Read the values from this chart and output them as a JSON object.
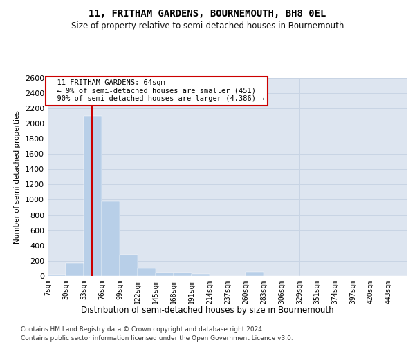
{
  "title": "11, FRITHAM GARDENS, BOURNEMOUTH, BH8 0EL",
  "subtitle": "Size of property relative to semi-detached houses in Bournemouth",
  "xlabel": "Distribution of semi-detached houses by size in Bournemouth",
  "ylabel": "Number of semi-detached properties",
  "footnote1": "Contains HM Land Registry data © Crown copyright and database right 2024.",
  "footnote2": "Contains public sector information licensed under the Open Government Licence v3.0.",
  "annotation_title": "11 FRITHAM GARDENS: 64sqm",
  "annotation_line1": "← 9% of semi-detached houses are smaller (451)",
  "annotation_line2": "90% of semi-detached houses are larger (4,386) →",
  "property_size": 64,
  "bar_edges": [
    7,
    30,
    53,
    76,
    99,
    122,
    145,
    168,
    191,
    214,
    237,
    260,
    283,
    306,
    329,
    351,
    374,
    397,
    420,
    443,
    466
  ],
  "bar_heights": [
    20,
    170,
    2100,
    980,
    280,
    100,
    45,
    45,
    30,
    0,
    0,
    50,
    0,
    0,
    0,
    0,
    0,
    0,
    0,
    0
  ],
  "bar_color": "#b8cfe8",
  "line_color": "#cc0000",
  "grid_color": "#c8d4e4",
  "bg_color": "#dde5f0",
  "ylim_max": 2600,
  "ytick_step": 200
}
